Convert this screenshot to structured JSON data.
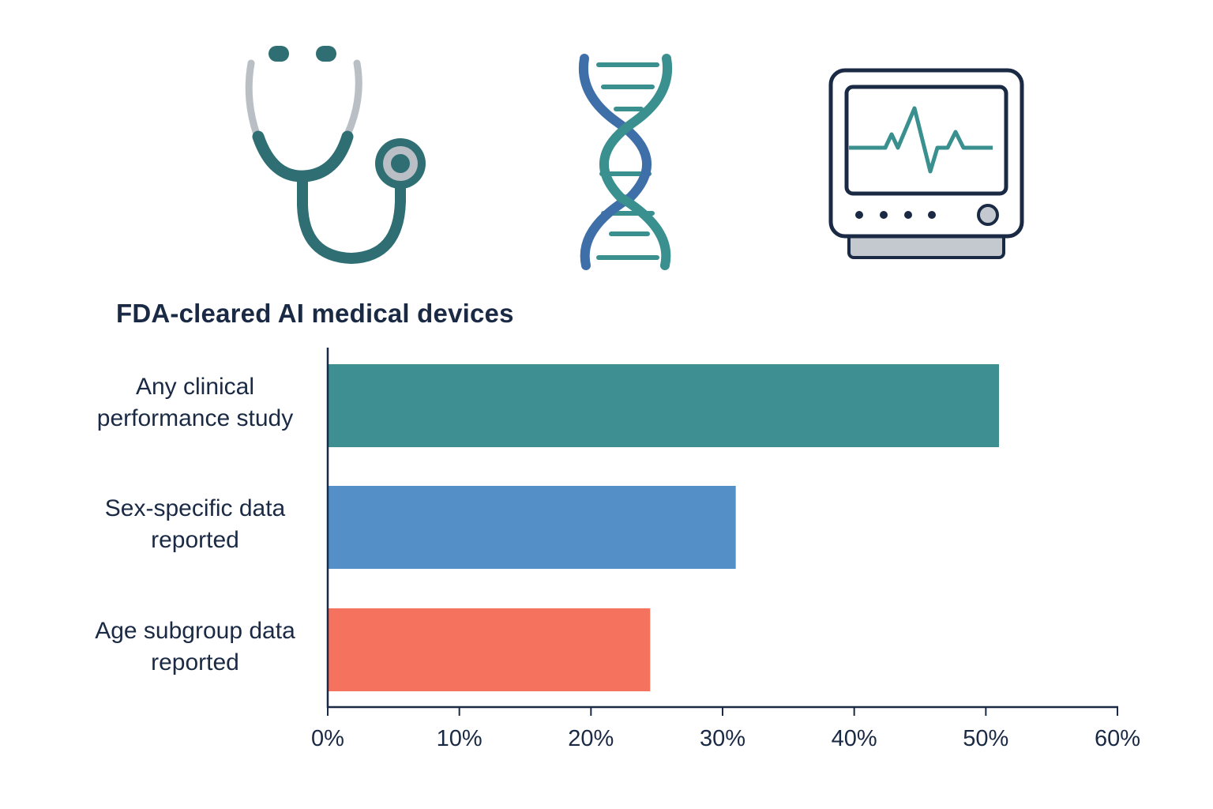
{
  "icons": [
    {
      "name": "stethoscope-icon",
      "colors": {
        "main": "#2f6f74",
        "tube": "#b9bfc4"
      }
    },
    {
      "name": "dna-icon",
      "colors": {
        "strand1": "#3f6fa8",
        "strand2": "#3a8f8f",
        "rungs": "#3a8f8f"
      }
    },
    {
      "name": "heart-monitor-icon",
      "colors": {
        "frame": "#1b2a44",
        "wave": "#3a8f8f",
        "base": "#c4c9d0"
      }
    }
  ],
  "chart_data": {
    "type": "bar",
    "orientation": "horizontal",
    "title": "FDA-cleared AI medical devices",
    "categories": [
      "Any clinical performance study",
      "Sex-specific data reported",
      "Age subgroup data reported"
    ],
    "category_lines": [
      [
        "Any clinical",
        "performance study"
      ],
      [
        "Sex-specific data",
        "reported"
      ],
      [
        "Age subgroup data",
        "reported"
      ]
    ],
    "values": [
      51,
      31,
      24.5
    ],
    "colors": [
      "#3d8f91",
      "#558fc7",
      "#f5735e"
    ],
    "xlim": [
      0,
      60
    ],
    "xticks": [
      0,
      10,
      20,
      30,
      40,
      50,
      60
    ],
    "xtick_labels": [
      "0%",
      "10%",
      "20%",
      "30%",
      "40%",
      "50%",
      "60%"
    ],
    "xlabel": "",
    "ylabel": "",
    "grid": false,
    "legend": "none"
  }
}
